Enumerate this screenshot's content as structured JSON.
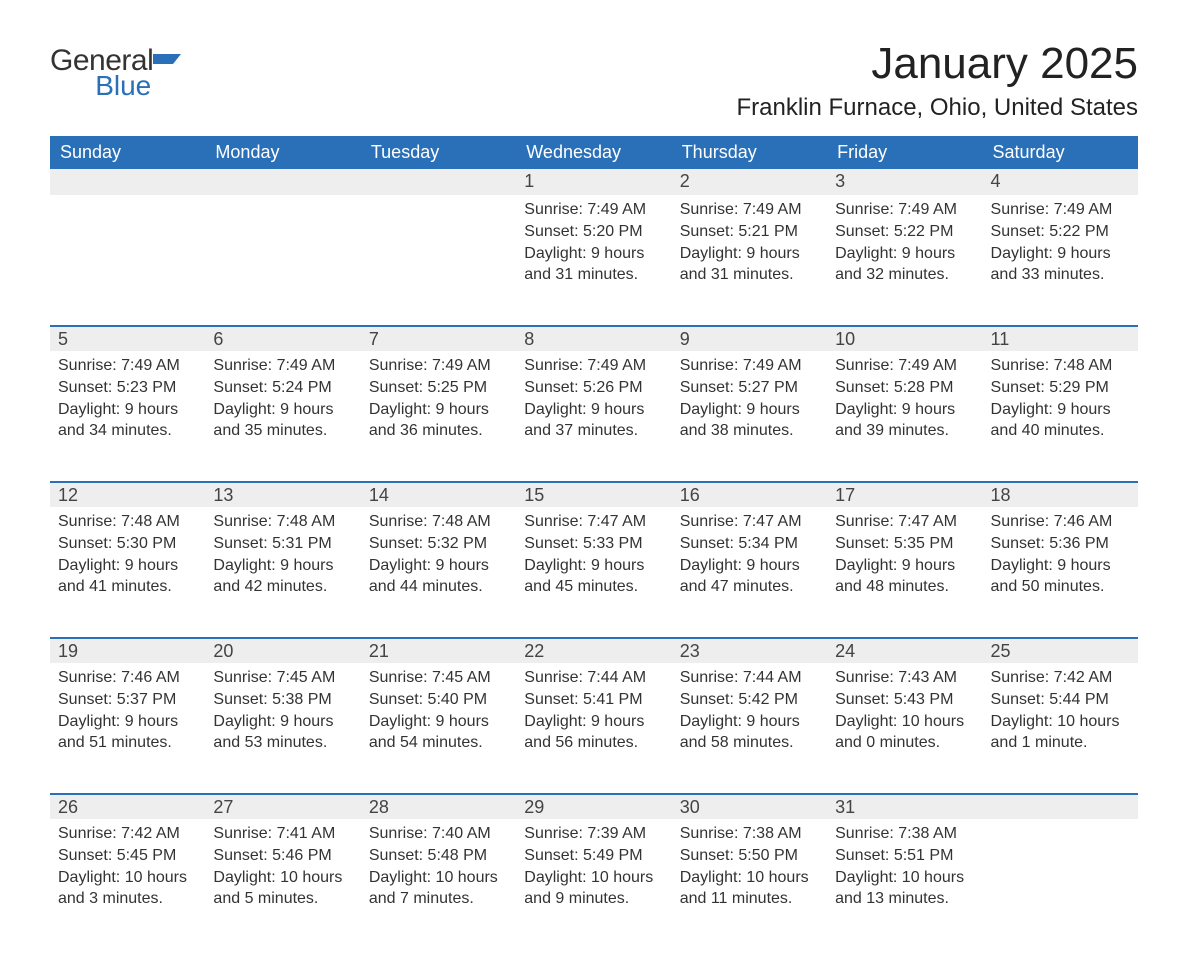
{
  "logo": {
    "word1": "General",
    "word2": "Blue"
  },
  "title": "January 2025",
  "location": "Franklin Furnace, Ohio, United States",
  "colors": {
    "header_bg": "#2a70b8",
    "header_text": "#ffffff",
    "daynum_bg": "#eeeeee",
    "rule": "#2a70b8",
    "text": "#333333",
    "background": "#ffffff"
  },
  "weekdays": [
    "Sunday",
    "Monday",
    "Tuesday",
    "Wednesday",
    "Thursday",
    "Friday",
    "Saturday"
  ],
  "weeks": [
    [
      null,
      null,
      null,
      {
        "n": "1",
        "sr": "7:49 AM",
        "ss": "5:20 PM",
        "dl": "9 hours and 31 minutes."
      },
      {
        "n": "2",
        "sr": "7:49 AM",
        "ss": "5:21 PM",
        "dl": "9 hours and 31 minutes."
      },
      {
        "n": "3",
        "sr": "7:49 AM",
        "ss": "5:22 PM",
        "dl": "9 hours and 32 minutes."
      },
      {
        "n": "4",
        "sr": "7:49 AM",
        "ss": "5:22 PM",
        "dl": "9 hours and 33 minutes."
      }
    ],
    [
      {
        "n": "5",
        "sr": "7:49 AM",
        "ss": "5:23 PM",
        "dl": "9 hours and 34 minutes."
      },
      {
        "n": "6",
        "sr": "7:49 AM",
        "ss": "5:24 PM",
        "dl": "9 hours and 35 minutes."
      },
      {
        "n": "7",
        "sr": "7:49 AM",
        "ss": "5:25 PM",
        "dl": "9 hours and 36 minutes."
      },
      {
        "n": "8",
        "sr": "7:49 AM",
        "ss": "5:26 PM",
        "dl": "9 hours and 37 minutes."
      },
      {
        "n": "9",
        "sr": "7:49 AM",
        "ss": "5:27 PM",
        "dl": "9 hours and 38 minutes."
      },
      {
        "n": "10",
        "sr": "7:49 AM",
        "ss": "5:28 PM",
        "dl": "9 hours and 39 minutes."
      },
      {
        "n": "11",
        "sr": "7:48 AM",
        "ss": "5:29 PM",
        "dl": "9 hours and 40 minutes."
      }
    ],
    [
      {
        "n": "12",
        "sr": "7:48 AM",
        "ss": "5:30 PM",
        "dl": "9 hours and 41 minutes."
      },
      {
        "n": "13",
        "sr": "7:48 AM",
        "ss": "5:31 PM",
        "dl": "9 hours and 42 minutes."
      },
      {
        "n": "14",
        "sr": "7:48 AM",
        "ss": "5:32 PM",
        "dl": "9 hours and 44 minutes."
      },
      {
        "n": "15",
        "sr": "7:47 AM",
        "ss": "5:33 PM",
        "dl": "9 hours and 45 minutes."
      },
      {
        "n": "16",
        "sr": "7:47 AM",
        "ss": "5:34 PM",
        "dl": "9 hours and 47 minutes."
      },
      {
        "n": "17",
        "sr": "7:47 AM",
        "ss": "5:35 PM",
        "dl": "9 hours and 48 minutes."
      },
      {
        "n": "18",
        "sr": "7:46 AM",
        "ss": "5:36 PM",
        "dl": "9 hours and 50 minutes."
      }
    ],
    [
      {
        "n": "19",
        "sr": "7:46 AM",
        "ss": "5:37 PM",
        "dl": "9 hours and 51 minutes."
      },
      {
        "n": "20",
        "sr": "7:45 AM",
        "ss": "5:38 PM",
        "dl": "9 hours and 53 minutes."
      },
      {
        "n": "21",
        "sr": "7:45 AM",
        "ss": "5:40 PM",
        "dl": "9 hours and 54 minutes."
      },
      {
        "n": "22",
        "sr": "7:44 AM",
        "ss": "5:41 PM",
        "dl": "9 hours and 56 minutes."
      },
      {
        "n": "23",
        "sr": "7:44 AM",
        "ss": "5:42 PM",
        "dl": "9 hours and 58 minutes."
      },
      {
        "n": "24",
        "sr": "7:43 AM",
        "ss": "5:43 PM",
        "dl": "10 hours and 0 minutes."
      },
      {
        "n": "25",
        "sr": "7:42 AM",
        "ss": "5:44 PM",
        "dl": "10 hours and 1 minute."
      }
    ],
    [
      {
        "n": "26",
        "sr": "7:42 AM",
        "ss": "5:45 PM",
        "dl": "10 hours and 3 minutes."
      },
      {
        "n": "27",
        "sr": "7:41 AM",
        "ss": "5:46 PM",
        "dl": "10 hours and 5 minutes."
      },
      {
        "n": "28",
        "sr": "7:40 AM",
        "ss": "5:48 PM",
        "dl": "10 hours and 7 minutes."
      },
      {
        "n": "29",
        "sr": "7:39 AM",
        "ss": "5:49 PM",
        "dl": "10 hours and 9 minutes."
      },
      {
        "n": "30",
        "sr": "7:38 AM",
        "ss": "5:50 PM",
        "dl": "10 hours and 11 minutes."
      },
      {
        "n": "31",
        "sr": "7:38 AM",
        "ss": "5:51 PM",
        "dl": "10 hours and 13 minutes."
      },
      null
    ]
  ],
  "labels": {
    "sunrise": "Sunrise: ",
    "sunset": "Sunset: ",
    "daylight": "Daylight: "
  }
}
